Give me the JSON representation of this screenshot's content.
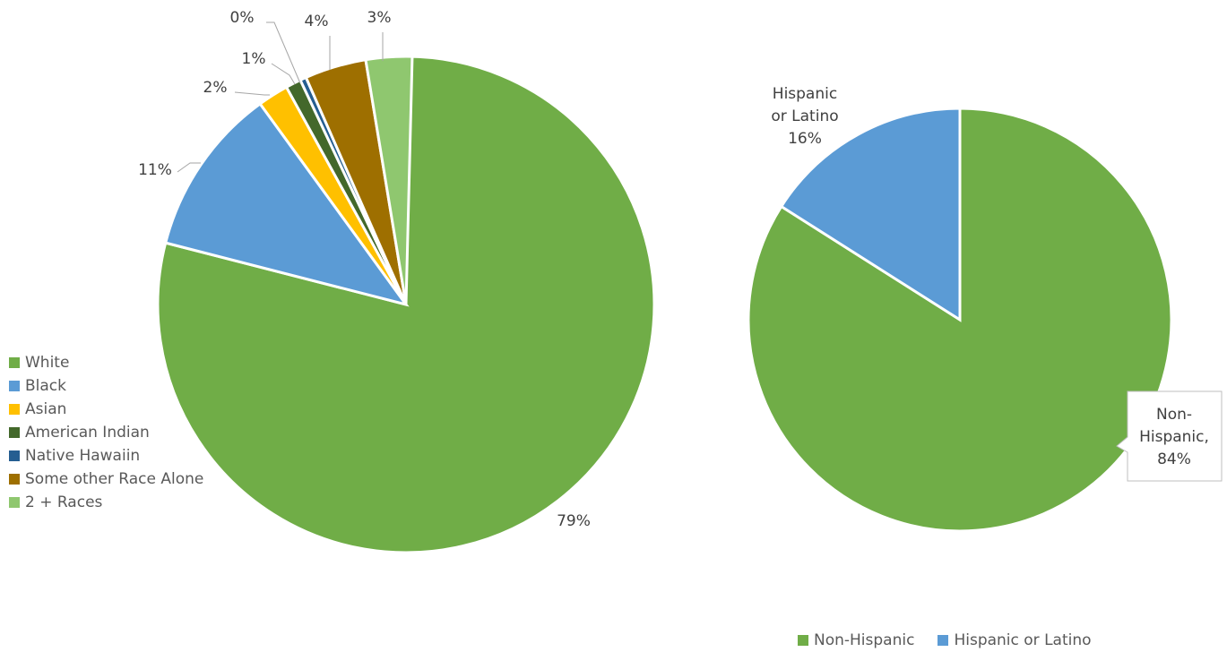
{
  "chart_data": [
    {
      "type": "pie",
      "categories": [
        "White",
        "Black",
        "Asian",
        "American Indian",
        "Native Hawaiin",
        "Some other Race Alone",
        "2 + Races"
      ],
      "values": [
        79,
        11,
        2,
        1,
        0,
        4,
        3
      ],
      "labels": [
        "79%",
        "11%",
        "2%",
        "1%",
        "0%",
        "4%",
        "3%"
      ],
      "colors": [
        "#70AD47",
        "#5B9BD5",
        "#FFC000",
        "#43682B",
        "#255E91",
        "#9E6F00",
        "#8FC76F"
      ],
      "legend": "left"
    },
    {
      "type": "pie",
      "categories": [
        "Non-Hispanic",
        "Hispanic or Latino"
      ],
      "values": [
        84,
        16
      ],
      "labels": [
        "Non-\nHispanic,\n84%",
        "Hispanic\nor Latino\n16%"
      ],
      "colors": [
        "#70AD47",
        "#5B9BD5"
      ],
      "legend": "bottom"
    }
  ]
}
